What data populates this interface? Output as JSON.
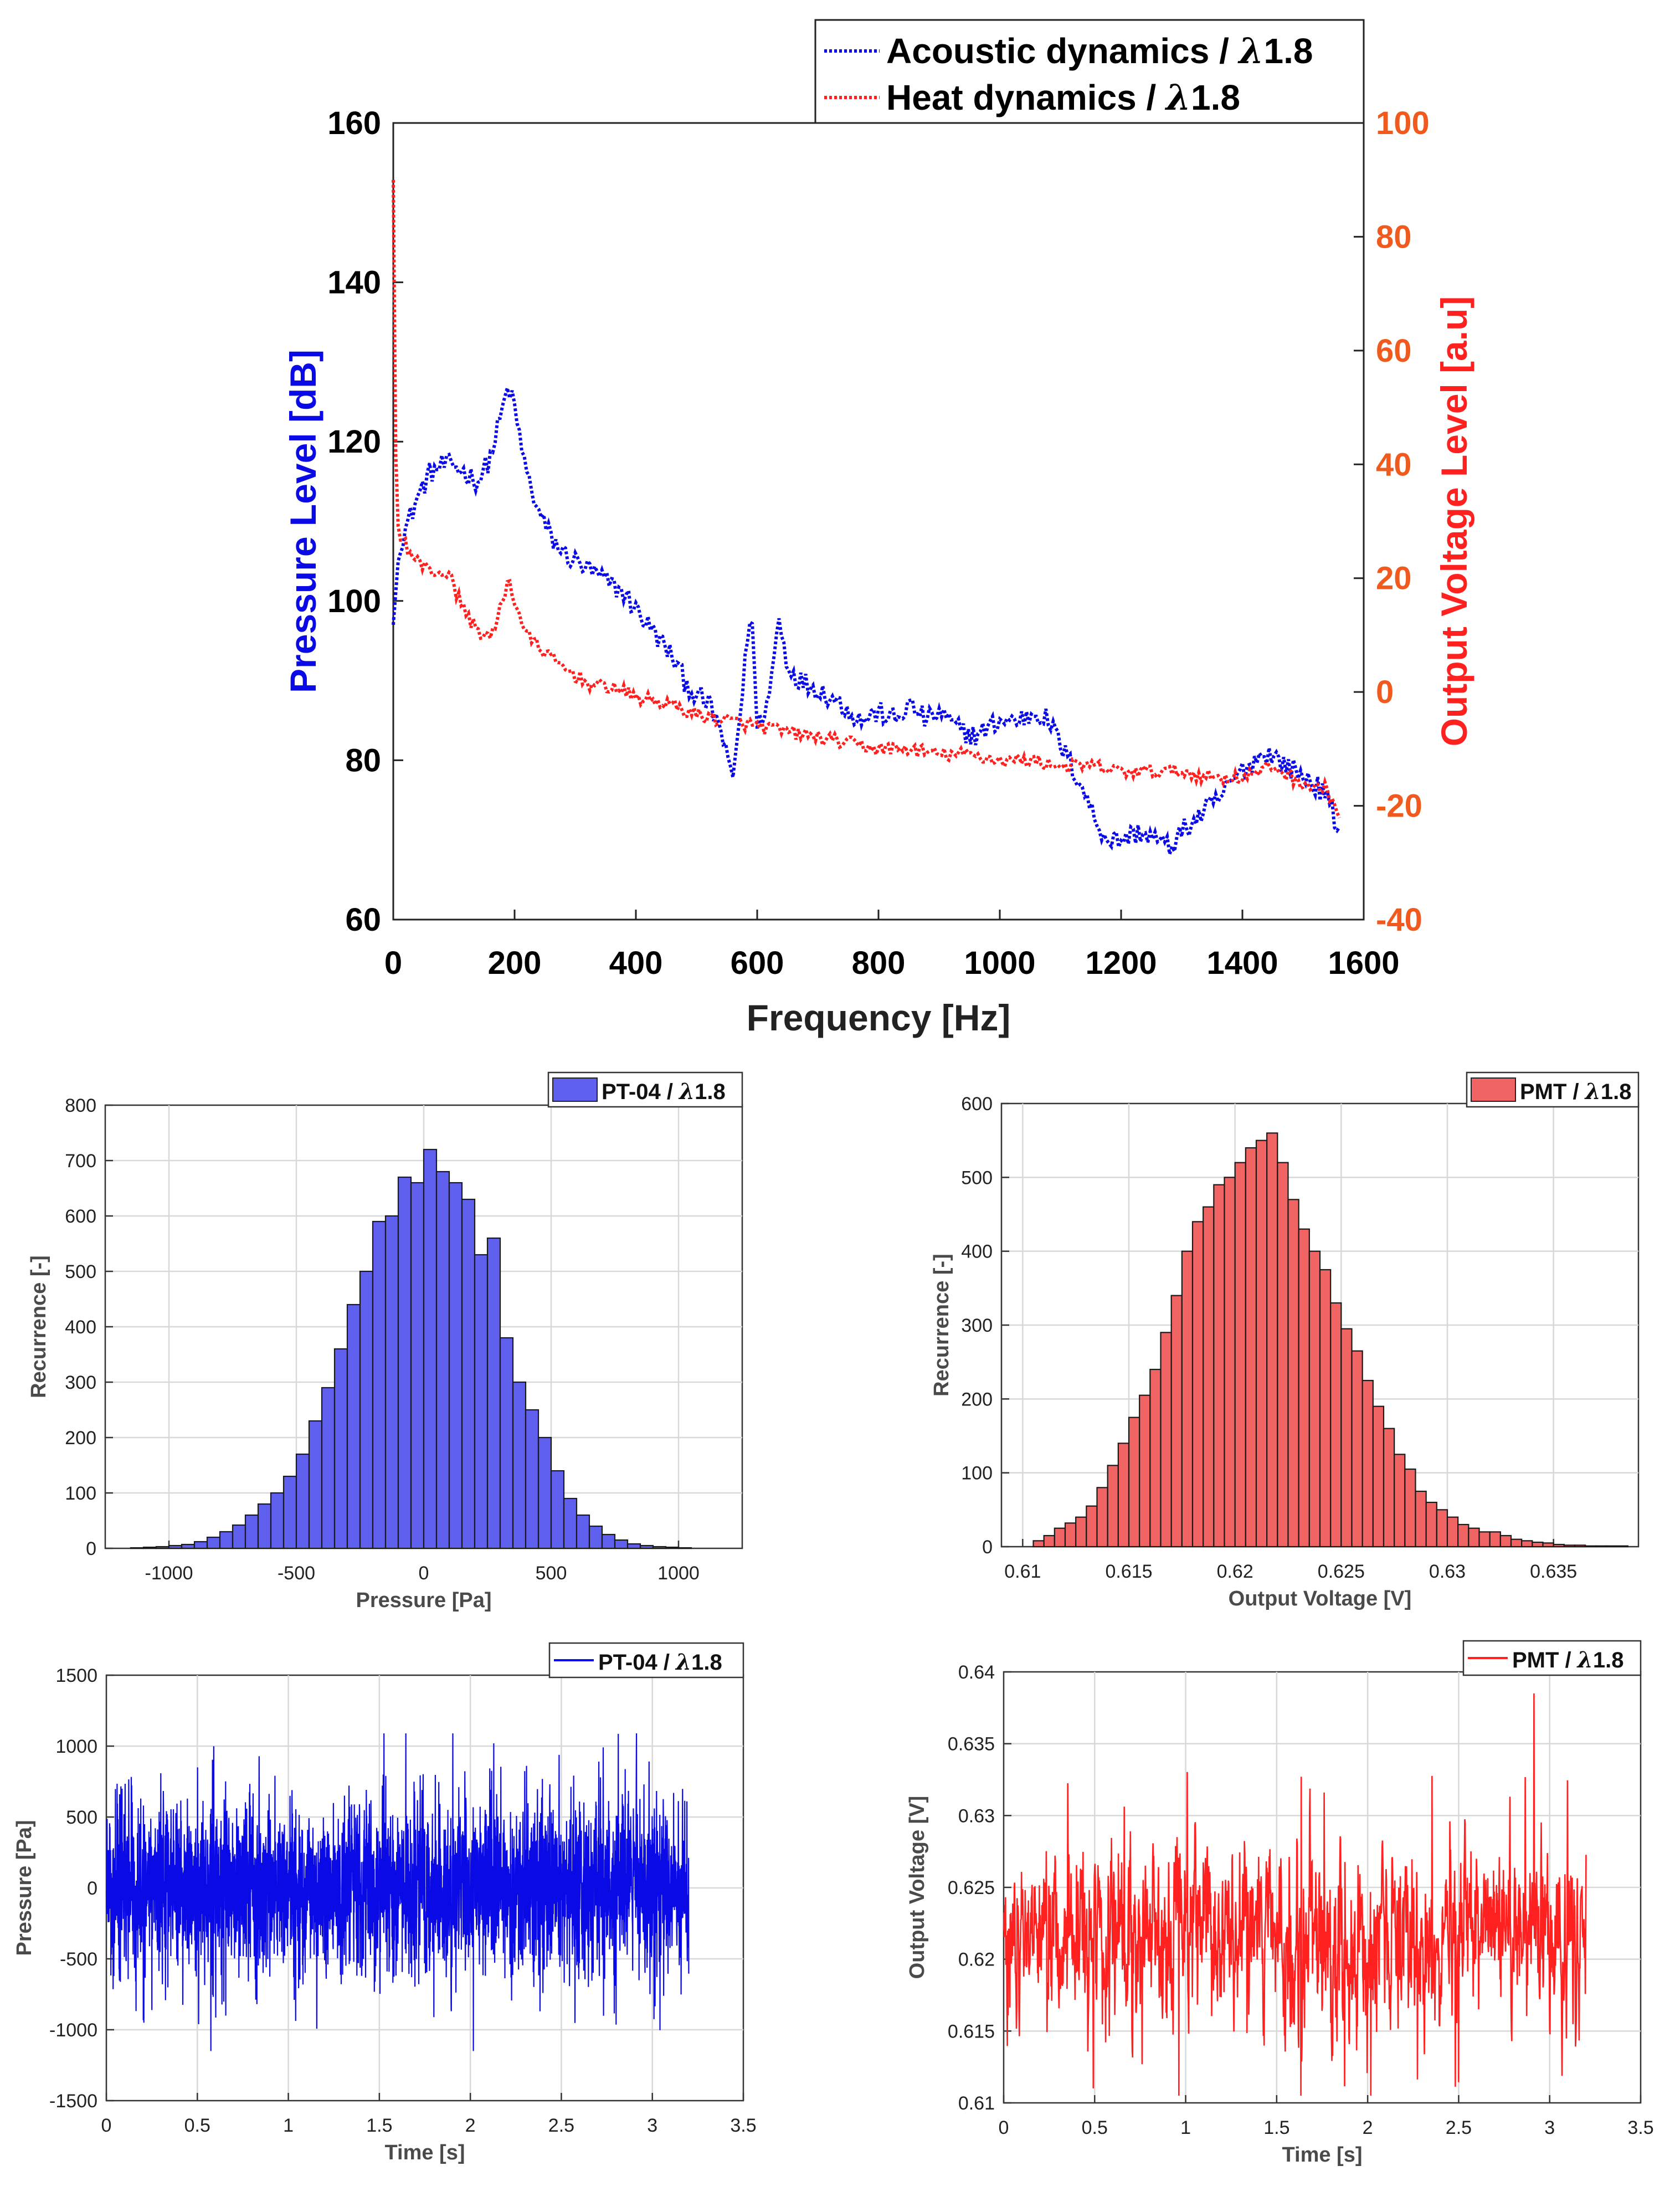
{
  "colors": {
    "blue": "#0a0ae6",
    "red": "#ff2020",
    "orange": "#f05a1e",
    "blue_fill": "#6060ee",
    "red_fill": "#f06464",
    "grid": "#d8d8d8",
    "axis_text": "#4a4a4a"
  },
  "chart_data": [
    {
      "id": "spectrum",
      "type": "line",
      "xlabel": "Frequency [Hz]",
      "ylabel": "Pressure Level [dB]",
      "y2label": "Output Voltage Level [a.u]",
      "xlim": [
        0,
        1600
      ],
      "ylim": [
        60,
        160
      ],
      "y2lim": [
        -40,
        100
      ],
      "xticks": [
        0,
        200,
        400,
        600,
        800,
        1000,
        1200,
        1400,
        1600
      ],
      "yticks": [
        60,
        80,
        100,
        120,
        140,
        160
      ],
      "y2ticks": [
        -40,
        -20,
        0,
        20,
        40,
        60,
        80,
        100
      ],
      "legend_position": "top-right",
      "series": [
        {
          "name": "Acoustic dynamics / λ1.8",
          "axis": "left",
          "line_style": "dotted",
          "x": [
            0,
            10,
            20,
            40,
            60,
            80,
            100,
            120,
            140,
            160,
            180,
            190,
            200,
            220,
            240,
            260,
            280,
            300,
            320,
            340,
            360,
            380,
            400,
            420,
            440,
            460,
            480,
            500,
            520,
            540,
            550,
            560,
            575,
            590,
            600,
            620,
            635,
            650,
            670,
            700,
            740,
            770,
            800,
            830,
            850,
            880,
            900,
            930,
            960,
            1000,
            1030,
            1060,
            1080,
            1100,
            1120,
            1140,
            1160,
            1180,
            1200,
            1230,
            1260,
            1280,
            1300,
            1330,
            1360,
            1390,
            1420,
            1440,
            1460,
            1480,
            1500,
            1520,
            1540,
            1560
          ],
          "y": [
            97,
            107,
            109,
            113,
            116,
            117,
            117,
            116,
            115,
            118,
            124,
            127,
            124,
            116,
            111,
            108,
            106,
            105,
            104,
            103,
            102,
            101,
            99,
            97,
            95,
            93,
            90,
            88,
            87,
            84,
            80,
            78,
            88,
            100,
            84,
            88,
            98,
            92,
            90,
            89,
            87,
            85,
            86,
            85,
            87,
            85,
            86,
            84,
            83,
            85,
            85,
            86,
            85,
            82,
            79,
            76,
            72,
            70,
            70,
            71,
            70,
            69,
            71,
            73,
            75,
            78,
            80,
            81,
            80,
            79,
            78,
            77,
            75,
            71
          ]
        },
        {
          "name": "Heat dynamics / λ1.8",
          "axis": "right",
          "line_style": "dotted",
          "x": [
            0,
            5,
            15,
            30,
            50,
            70,
            90,
            110,
            130,
            150,
            165,
            180,
            190,
            200,
            220,
            240,
            270,
            300,
            330,
            360,
            400,
            450,
            500,
            550,
            600,
            650,
            700,
            750,
            800,
            850,
            900,
            950,
            1000,
            1050,
            1100,
            1150,
            1200,
            1250,
            1300,
            1350,
            1400,
            1430,
            1450,
            1480,
            1500,
            1520,
            1540,
            1560
          ],
          "y": [
            90,
            30,
            27,
            24,
            22,
            21,
            21,
            16,
            12,
            10,
            10,
            16,
            20,
            16,
            10,
            8,
            5,
            3,
            1,
            1,
            -1,
            -2,
            -4,
            -5,
            -6,
            -7,
            -8,
            -9,
            -10,
            -10,
            -11,
            -11,
            -12,
            -12,
            -13,
            -13,
            -14,
            -14,
            -14,
            -15,
            -15,
            -14,
            -13,
            -15,
            -16,
            -17,
            -17,
            -22
          ]
        }
      ]
    },
    {
      "id": "hist_pressure",
      "type": "bar",
      "legend": "PT-04 / λ1.8",
      "legend_position": "top-right",
      "xlabel": "Pressure [Pa]",
      "ylabel": "Recurrence [-]",
      "xlim": [
        -1250,
        1250
      ],
      "ylim": [
        0,
        800
      ],
      "xticks": [
        -1000,
        -500,
        0,
        500,
        1000
      ],
      "yticks": [
        0,
        100,
        200,
        300,
        400,
        500,
        600,
        700,
        800
      ],
      "bin_start": -1150,
      "bin_width": 50,
      "values": [
        1,
        2,
        3,
        5,
        7,
        12,
        20,
        30,
        42,
        60,
        80,
        100,
        130,
        170,
        230,
        290,
        360,
        440,
        500,
        590,
        600,
        670,
        660,
        720,
        680,
        660,
        630,
        530,
        560,
        380,
        300,
        250,
        200,
        140,
        90,
        60,
        40,
        25,
        15,
        8,
        5,
        3,
        2,
        1
      ]
    },
    {
      "id": "hist_voltage",
      "type": "bar",
      "legend": "PMT / λ1.8",
      "legend_position": "top-right",
      "xlabel": "Output Voltage [V]",
      "ylabel": "Recurrence [-]",
      "xlim": [
        0.609,
        0.639
      ],
      "ylim": [
        0,
        600
      ],
      "xticks": [
        0.61,
        0.615,
        0.62,
        0.625,
        0.63,
        0.635
      ],
      "xtick_labels": [
        "0.61",
        "0.615",
        "0.62",
        "0.625",
        "0.63",
        "0.635"
      ],
      "yticks": [
        0,
        100,
        200,
        300,
        400,
        500,
        600
      ],
      "bin_start": 0.6105,
      "bin_width": 0.0005,
      "values": [
        8,
        15,
        25,
        32,
        40,
        55,
        80,
        110,
        140,
        175,
        205,
        240,
        290,
        340,
        400,
        440,
        460,
        490,
        500,
        520,
        540,
        550,
        560,
        520,
        470,
        430,
        400,
        375,
        330,
        295,
        265,
        225,
        190,
        160,
        125,
        105,
        75,
        60,
        50,
        40,
        30,
        25,
        20,
        20,
        15,
        10,
        8,
        6,
        5,
        3,
        2,
        2,
        1,
        1,
        1,
        1
      ]
    },
    {
      "id": "time_pressure",
      "type": "line",
      "legend": "PT-04 / λ1.8",
      "legend_position": "top-right",
      "xlabel": "Time [s]",
      "ylabel": "Pressure [Pa]",
      "xlim": [
        0,
        3.5
      ],
      "ylim": [
        -1500,
        1500
      ],
      "xticks": [
        0,
        0.5,
        1,
        1.5,
        2,
        2.5,
        3,
        3.5
      ],
      "yticks": [
        -1500,
        -1000,
        -500,
        0,
        500,
        1000,
        1500
      ],
      "signal": {
        "t_start": 0,
        "t_end": 3.2,
        "mean": 0,
        "std": 300,
        "max": 1090,
        "min": -1150,
        "samples": 3200
      }
    },
    {
      "id": "time_voltage",
      "type": "line",
      "legend": "PMT / λ1.8",
      "legend_position": "top-right",
      "xlabel": "Time [s]",
      "ylabel": "Output Voltage [V]",
      "xlim": [
        0,
        3.5
      ],
      "ylim": [
        0.61,
        0.64
      ],
      "xticks": [
        0,
        0.5,
        1,
        1.5,
        2,
        2.5,
        3,
        3.5
      ],
      "yticks": [
        0.61,
        0.615,
        0.62,
        0.625,
        0.63,
        0.635,
        0.64
      ],
      "ytick_labels": [
        "0.61",
        "0.615",
        "0.62",
        "0.625",
        "0.63",
        "0.635",
        "0.64"
      ],
      "signal": {
        "t_start": 0,
        "t_end": 3.2,
        "mean": 0.6213,
        "std": 0.0035,
        "max": 0.6385,
        "min": 0.6105,
        "samples": 1600
      }
    }
  ]
}
